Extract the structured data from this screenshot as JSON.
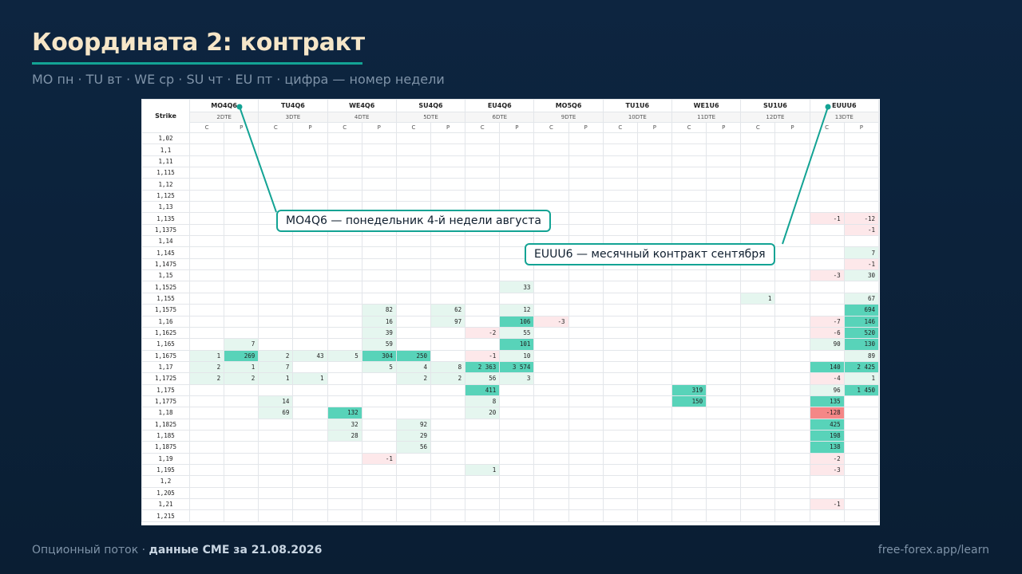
{
  "title": "Координата 2: контракт",
  "subtitle": "МО пн · TU вт · WE ср · SU чт · EU пт · цифра — номер недели",
  "table": {
    "strike_header": "Strike",
    "contracts": [
      {
        "name": "MO4Q6",
        "dte": "2DTE"
      },
      {
        "name": "TU4Q6",
        "dte": "3DTE"
      },
      {
        "name": "WE4Q6",
        "dte": "4DTE"
      },
      {
        "name": "SU4Q6",
        "dte": "5DTE"
      },
      {
        "name": "EU4Q6",
        "dte": "6DTE"
      },
      {
        "name": "MO5Q6",
        "dte": "9DTE"
      },
      {
        "name": "TU1U6",
        "dte": "10DTE"
      },
      {
        "name": "WE1U6",
        "dte": "11DTE"
      },
      {
        "name": "SU1U6",
        "dte": "12DTE"
      },
      {
        "name": "EUUU6",
        "dte": "13DTE"
      }
    ],
    "call_label": "C",
    "put_label": "P",
    "rows": [
      {
        "strike": "1,02",
        "cells": {}
      },
      {
        "strike": "1,1",
        "cells": {}
      },
      {
        "strike": "1,11",
        "cells": {}
      },
      {
        "strike": "1,115",
        "cells": {}
      },
      {
        "strike": "1,12",
        "cells": {}
      },
      {
        "strike": "1,125",
        "cells": {}
      },
      {
        "strike": "1,13",
        "cells": {}
      },
      {
        "strike": "1,135",
        "cells": {
          "18": "-1",
          "19": "-12"
        }
      },
      {
        "strike": "1,1375",
        "cells": {
          "19": "-1"
        }
      },
      {
        "strike": "1,14",
        "cells": {}
      },
      {
        "strike": "1,145",
        "cells": {
          "19": "7"
        }
      },
      {
        "strike": "1,1475",
        "cells": {
          "19": "-1"
        }
      },
      {
        "strike": "1,15",
        "cells": {
          "18": "-3",
          "19": "30"
        }
      },
      {
        "strike": "1,1525",
        "cells": {
          "9": "33"
        }
      },
      {
        "strike": "1,155",
        "cells": {
          "16": "1",
          "19": "67"
        }
      },
      {
        "strike": "1,1575",
        "cells": {
          "5": "82",
          "7": "62",
          "9": "12",
          "19": "694"
        }
      },
      {
        "strike": "1,16",
        "cells": {
          "5": "16",
          "7": "97",
          "9": "106",
          "10": "-3",
          "18": "-7",
          "19": "146"
        }
      },
      {
        "strike": "1,1625",
        "cells": {
          "5": "39",
          "8": "-2",
          "9": "55",
          "18": "-6",
          "19": "520"
        }
      },
      {
        "strike": "1,165",
        "cells": {
          "1": "7",
          "5": "59",
          "9": "101",
          "18": "90",
          "19": "130"
        }
      },
      {
        "strike": "1,1675",
        "cells": {
          "0": "1",
          "1": "269",
          "2": "2",
          "3": "43",
          "4": "5",
          "5": "304",
          "6": "250",
          "8": "-1",
          "9": "10",
          "19": "89"
        }
      },
      {
        "strike": "1,17",
        "cells": {
          "0": "2",
          "1": "1",
          "2": "7",
          "5": "5",
          "6": "4",
          "7": "8",
          "8": "2 363",
          "9": "3 574",
          "18": "140",
          "19": "2 425"
        }
      },
      {
        "strike": "1,1725",
        "cells": {
          "0": "2",
          "1": "2",
          "2": "1",
          "3": "1",
          "6": "2",
          "7": "2",
          "8": "56",
          "9": "3",
          "18": "-4",
          "19": "1"
        }
      },
      {
        "strike": "1,175",
        "cells": {
          "8": "411",
          "14": "319",
          "18": "96",
          "19": "1 450"
        }
      },
      {
        "strike": "1,1775",
        "cells": {
          "2": "14",
          "8": "8",
          "14": "150",
          "18": "135"
        }
      },
      {
        "strike": "1,18",
        "cells": {
          "2": "69",
          "4": "132",
          "8": "20",
          "18": "-128"
        }
      },
      {
        "strike": "1,1825",
        "cells": {
          "4": "32",
          "6": "92",
          "18": "425"
        }
      },
      {
        "strike": "1,185",
        "cells": {
          "4": "28",
          "6": "29",
          "18": "198"
        }
      },
      {
        "strike": "1,1875",
        "cells": {
          "6": "56",
          "18": "138"
        }
      },
      {
        "strike": "1,19",
        "cells": {
          "5": "-1",
          "18": "-2"
        }
      },
      {
        "strike": "1,195",
        "cells": {
          "8": "1",
          "18": "-3"
        }
      },
      {
        "strike": "1,2",
        "cells": {}
      },
      {
        "strike": "1,205",
        "cells": {}
      },
      {
        "strike": "1,21",
        "cells": {
          "18": "-1"
        }
      },
      {
        "strike": "1,215",
        "cells": {}
      }
    ]
  },
  "callouts": [
    {
      "text": "MO4Q6 — понедельник 4-й недели августа"
    },
    {
      "text": "EUUU6 — месячный контракт сентября"
    }
  ],
  "footer": {
    "left_prefix": "Опционный поток · ",
    "left_bold": "данные CME за 21.08.2026",
    "right": "free-forex.app/learn"
  },
  "colors": {
    "accent": "#13a394",
    "title": "#f6e6c8",
    "positive_light": "#e5f6ef",
    "positive_strong": "#58d3b9",
    "negative_light": "#fde8ea",
    "negative_strong": "#f48787"
  }
}
